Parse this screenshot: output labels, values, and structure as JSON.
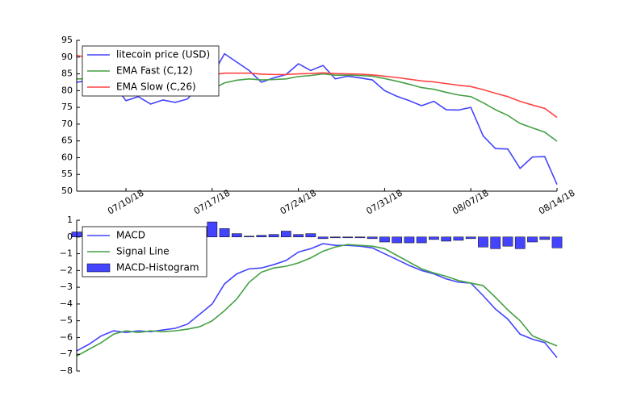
{
  "chart_data": [
    {
      "type": "line",
      "x": [
        "2018-07-06",
        "2018-07-07",
        "2018-07-08",
        "2018-07-09",
        "2018-07-10",
        "2018-07-11",
        "2018-07-12",
        "2018-07-13",
        "2018-07-14",
        "2018-07-15",
        "2018-07-16",
        "2018-07-17",
        "2018-07-18",
        "2018-07-19",
        "2018-07-20",
        "2018-07-21",
        "2018-07-22",
        "2018-07-23",
        "2018-07-24",
        "2018-07-25",
        "2018-07-26",
        "2018-07-27",
        "2018-07-28",
        "2018-07-29",
        "2018-07-30",
        "2018-07-31",
        "2018-08-01",
        "2018-08-02",
        "2018-08-03",
        "2018-08-04",
        "2018-08-05",
        "2018-08-06",
        "2018-08-07",
        "2018-08-08",
        "2018-08-09",
        "2018-08-10",
        "2018-08-11",
        "2018-08-12",
        "2018-08-13",
        "2018-08-14"
      ],
      "series": [
        {
          "name": "litecoin price (USD)",
          "color": "#4444ff",
          "values": [
            82.5,
            83,
            83,
            82,
            77,
            78.2,
            76,
            77.2,
            76.5,
            77.5,
            82,
            84.5,
            91,
            88.5,
            86,
            82.5,
            83.8,
            84.8,
            88,
            86,
            87.5,
            83.5,
            84.3,
            83.8,
            83.2,
            80,
            78.3,
            77,
            75.5,
            76.8,
            74.3,
            74.2,
            75,
            66.5,
            62.7,
            62.6,
            56.8,
            60.2,
            60.3,
            52
          ]
        },
        {
          "name": "EMA Fast (C,12)",
          "color": "#44a044",
          "values": [
            83.5,
            83.5,
            83.4,
            83.2,
            82.3,
            81.7,
            80.8,
            80.2,
            79.6,
            79.3,
            79.7,
            80.4,
            82.3,
            83.1,
            83.5,
            83.2,
            83.3,
            83.5,
            84.2,
            84.5,
            85,
            84.6,
            84.6,
            84.5,
            84.3,
            83.6,
            82.8,
            81.9,
            80.9,
            80.4,
            79.5,
            78.7,
            78.2,
            76.4,
            74.3,
            72.6,
            70.2,
            68.9,
            67.6,
            64.9
          ]
        },
        {
          "name": "EMA Slow (C,26)",
          "color": "#ff4444",
          "values": [
            90.5,
            89.8,
            89.2,
            88.5,
            87.6,
            87,
            86.3,
            85.8,
            85.3,
            84.9,
            84.7,
            84.7,
            85.2,
            85.2,
            85.2,
            84.9,
            84.8,
            84.8,
            85,
            85.1,
            85.3,
            85.1,
            85,
            84.9,
            84.7,
            84.3,
            83.9,
            83.4,
            82.9,
            82.6,
            82.1,
            81.6,
            81.2,
            80.3,
            79.2,
            78.2,
            76.8,
            75.7,
            74.7,
            72
          ]
        }
      ],
      "xlim": [
        "2018-07-06",
        "2018-08-14"
      ],
      "xticks": [
        {
          "value": "2018-07-10",
          "label": "07/10/18"
        },
        {
          "value": "2018-07-17",
          "label": "07/17/18"
        },
        {
          "value": "2018-07-24",
          "label": "07/24/18"
        },
        {
          "value": "2018-07-31",
          "label": "07/31/18"
        },
        {
          "value": "2018-08-07",
          "label": "08/07/18"
        },
        {
          "value": "2018-08-14",
          "label": "08/14/18"
        }
      ],
      "ylim": [
        50,
        95
      ],
      "yticks": [
        50,
        55,
        60,
        65,
        70,
        75,
        80,
        85,
        90,
        95
      ]
    },
    {
      "type": "line",
      "x": [
        "2018-07-06",
        "2018-07-07",
        "2018-07-08",
        "2018-07-09",
        "2018-07-10",
        "2018-07-11",
        "2018-07-12",
        "2018-07-13",
        "2018-07-14",
        "2018-07-15",
        "2018-07-16",
        "2018-07-17",
        "2018-07-18",
        "2018-07-19",
        "2018-07-20",
        "2018-07-21",
        "2018-07-22",
        "2018-07-23",
        "2018-07-24",
        "2018-07-25",
        "2018-07-26",
        "2018-07-27",
        "2018-07-28",
        "2018-07-29",
        "2018-07-30",
        "2018-07-31",
        "2018-08-01",
        "2018-08-02",
        "2018-08-03",
        "2018-08-04",
        "2018-08-05",
        "2018-08-06",
        "2018-08-07",
        "2018-08-08",
        "2018-08-09",
        "2018-08-10",
        "2018-08-11",
        "2018-08-12",
        "2018-08-13",
        "2018-08-14"
      ],
      "series": [
        {
          "name": "MACD",
          "color": "#4444ff",
          "values": [
            -6.8,
            -6.4,
            -5.9,
            -5.6,
            -5.7,
            -5.6,
            -5.65,
            -5.55,
            -5.45,
            -5.2,
            -4.6,
            -4.0,
            -2.8,
            -2.2,
            -1.9,
            -1.85,
            -1.65,
            -1.4,
            -0.9,
            -0.7,
            -0.4,
            -0.5,
            -0.5,
            -0.55,
            -0.65,
            -1.0,
            -1.35,
            -1.7,
            -2.0,
            -2.2,
            -2.5,
            -2.7,
            -2.75,
            -3.5,
            -4.3,
            -4.9,
            -5.8,
            -6.1,
            -6.3,
            -7.2
          ]
        },
        {
          "name": "Signal Line",
          "color": "#44a044",
          "values": [
            -7.1,
            -6.7,
            -6.3,
            -5.8,
            -5.6,
            -5.7,
            -5.6,
            -5.65,
            -5.6,
            -5.5,
            -5.35,
            -5.0,
            -4.4,
            -3.7,
            -2.7,
            -2.1,
            -1.85,
            -1.75,
            -1.55,
            -1.25,
            -0.85,
            -0.6,
            -0.45,
            -0.5,
            -0.55,
            -0.7,
            -1.1,
            -1.5,
            -1.9,
            -2.15,
            -2.35,
            -2.6,
            -2.75,
            -2.9,
            -3.6,
            -4.35,
            -5.0,
            -5.9,
            -6.2,
            -6.5
          ]
        },
        {
          "name": "MACD-Histogram",
          "color": "#4444ff",
          "type": "bar",
          "values": [
            0.3,
            0.3,
            0.35,
            0.2,
            -0.1,
            0.05,
            -0.05,
            0.1,
            0.15,
            0.3,
            0.5,
            0.9,
            0.5,
            0.2,
            0.05,
            0.1,
            0.15,
            0.35,
            0.15,
            0.2,
            -0.1,
            -0.05,
            -0.05,
            -0.05,
            -0.1,
            -0.3,
            -0.35,
            -0.35,
            -0.35,
            -0.15,
            -0.25,
            -0.2,
            -0.1,
            -0.6,
            -0.7,
            -0.55,
            -0.7,
            -0.3,
            -0.15,
            -0.65
          ]
        }
      ],
      "xlim": [
        "2018-07-06",
        "2018-08-14"
      ],
      "ylim": [
        -8,
        1
      ],
      "yticks": [
        {
          "value": -8,
          "label": "−8"
        },
        {
          "value": -7,
          "label": "−7"
        },
        {
          "value": -6,
          "label": "−6"
        },
        {
          "value": -5,
          "label": "−5"
        },
        {
          "value": -4,
          "label": "−4"
        },
        {
          "value": -3,
          "label": "−3"
        },
        {
          "value": -2,
          "label": "−2"
        },
        {
          "value": -1,
          "label": "−1"
        },
        0,
        1
      ]
    }
  ]
}
